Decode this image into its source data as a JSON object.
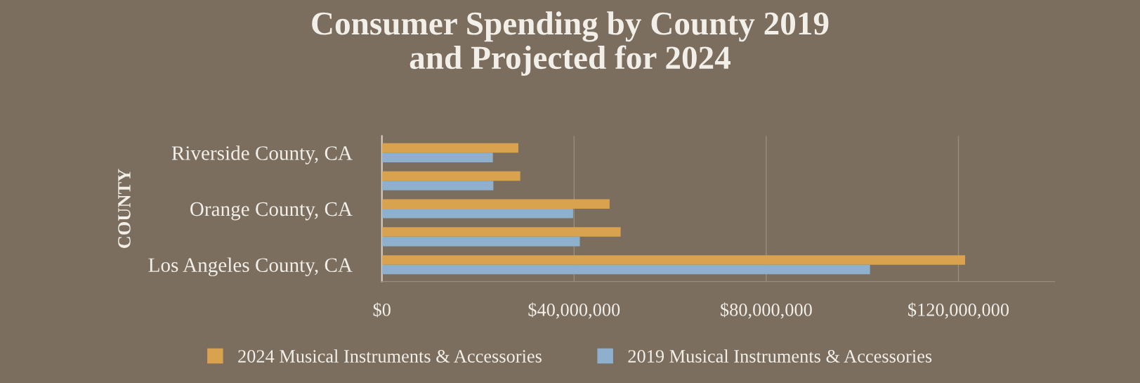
{
  "chart_data": {
    "type": "bar",
    "orientation": "horizontal",
    "title": "Consumer Spending by County 2019\nand Projected for 2024",
    "ylabel": "COUNTY",
    "categories": [
      "Riverside County, CA",
      null,
      "Orange County, CA",
      null,
      "Los Angeles County, CA"
    ],
    "series": [
      {
        "name": "2024 Musical Instruments & Accessories",
        "color": "#d9a24e",
        "values": [
          28400000,
          28800000,
          47400000,
          49700000,
          121400000
        ]
      },
      {
        "name": "2019 Musical Instruments & Accessories",
        "color": "#8eb0cc",
        "values": [
          23100000,
          23200000,
          39800000,
          41200000,
          101600000
        ]
      }
    ],
    "xlim": [
      0,
      140000000
    ],
    "xticks": [
      {
        "value": 0,
        "label": "$0"
      },
      {
        "value": 40000000,
        "label": "$40,000,000"
      },
      {
        "value": 80000000,
        "label": "$80,000,000"
      },
      {
        "value": 120000000,
        "label": "$120,000,000"
      }
    ],
    "grid": "x",
    "legend": "bottom"
  }
}
